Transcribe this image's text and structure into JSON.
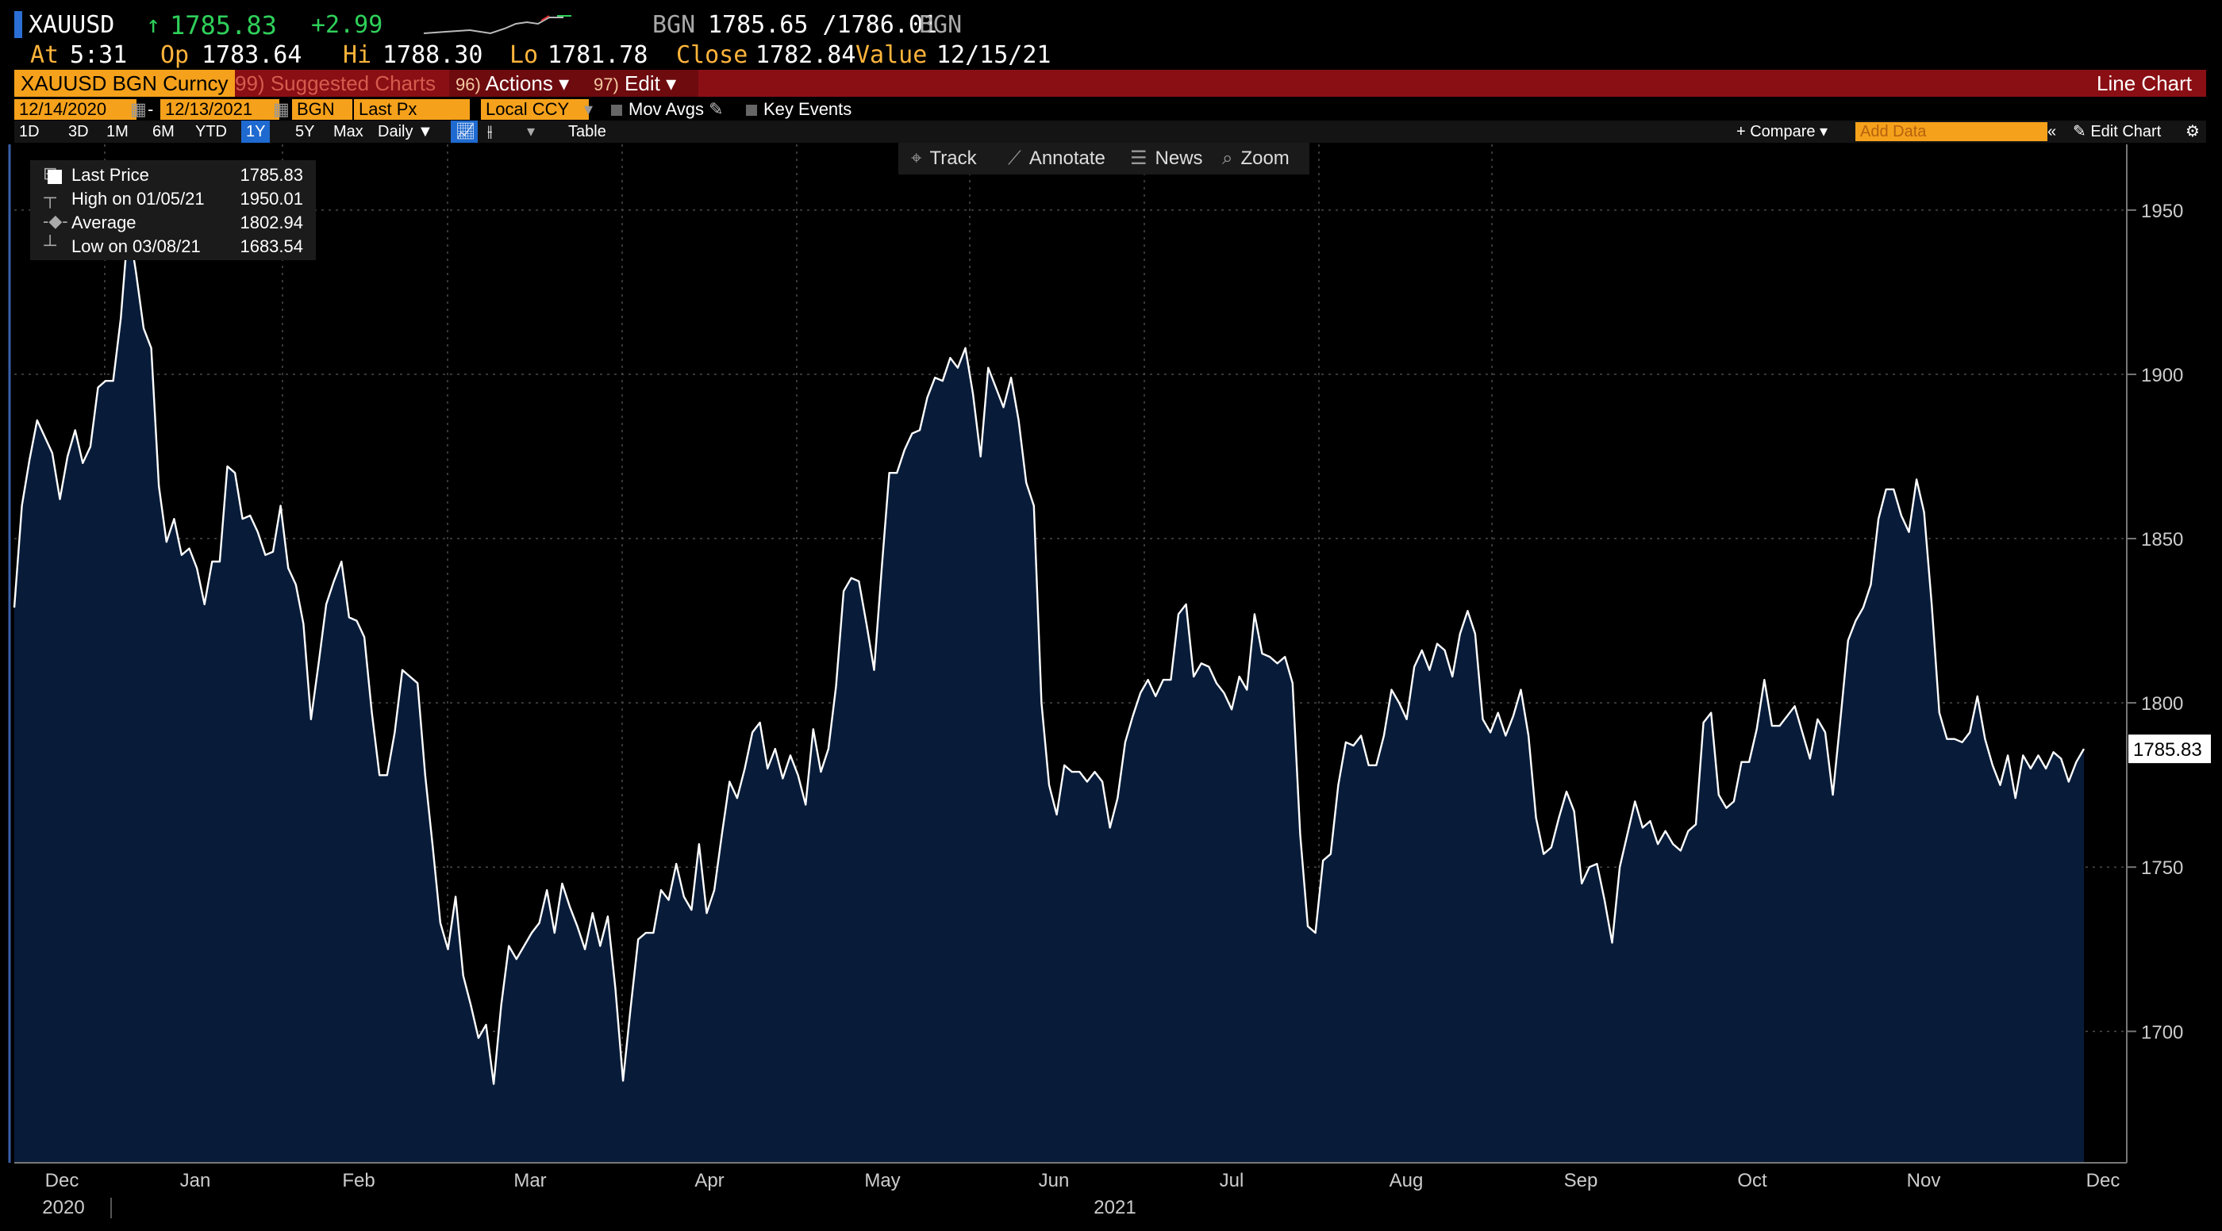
{
  "quote": {
    "ticker": "XAUUSD",
    "arrow": "↑",
    "last": "1785.83",
    "change": "+2.99",
    "source": "BGN",
    "bid_ask": "1785.65 /1786.01",
    "source2": "BGN",
    "at_label": "At",
    "at_time": "5:31",
    "open_label": "Op",
    "open": "1783.64",
    "hi_label": "Hi",
    "hi": "1788.30",
    "lo_label": "Lo",
    "lo": "1781.78",
    "close_label": "Close",
    "close": "1782.84",
    "value_label": "Value",
    "value_date": "12/15/21"
  },
  "toolbar": {
    "security": "XAUUSD BGN Curncy",
    "suggested": "Suggested Charts",
    "suggested_num": "99)",
    "actions_num": "96)",
    "actions": "Actions",
    "edit_num": "97)",
    "edit": "Edit",
    "chart_type": "Line Chart",
    "caret": "▾"
  },
  "params": {
    "start": "12/14/2020",
    "dash": "-",
    "end": "12/13/2021",
    "source": "BGN",
    "field": "Last Px",
    "currency": "Local CCY",
    "mov_avgs": "Mov Avgs",
    "key_events": "Key Events"
  },
  "ranges": {
    "items": [
      "1D",
      "3D",
      "1M",
      "6M",
      "YTD",
      "1Y",
      "5Y",
      "Max"
    ],
    "selected": "1Y",
    "period": "Daily ▼",
    "table": "Table",
    "compare": "+ Compare ▾",
    "add_data_placeholder": "Add Data",
    "edit_chart": "Edit Chart"
  },
  "tools": {
    "track": "Track",
    "annotate": "Annotate",
    "news": "News",
    "zoom": "Zoom"
  },
  "legend": {
    "last_label": "Last Price",
    "last_value": "1785.83",
    "high_label": "High on 01/05/21",
    "high_value": "1950.01",
    "avg_label": "Average",
    "avg_value": "1802.94",
    "low_label": "Low on 03/08/21",
    "low_value": "1683.54"
  },
  "chart_data": {
    "type": "area",
    "ylim": [
      1660,
      1970
    ],
    "yticks": [
      1700,
      1750,
      1800,
      1850,
      1900,
      1950
    ],
    "xticks": [
      "Dec",
      "Jan",
      "Feb",
      "Mar",
      "Apr",
      "May",
      "Jun",
      "Jul",
      "Aug",
      "Sep",
      "Oct",
      "Nov",
      "Dec"
    ],
    "year_labels": [
      "2020",
      "2021"
    ],
    "last_price_label": "1785.83",
    "grid": true,
    "line_color": "#ffffff",
    "fill_color": "#081c3a",
    "series": [
      {
        "values": [
          1829,
          1860,
          1874,
          1886,
          1881,
          1876,
          1862,
          1875,
          1883,
          1873,
          1878,
          1896,
          1898,
          1898,
          1917,
          1946,
          1931,
          1914,
          1908,
          1866,
          1849,
          1856,
          1845,
          1847,
          1841,
          1830,
          1843,
          1843,
          1872,
          1870,
          1856,
          1857,
          1852,
          1845,
          1846,
          1860,
          1841,
          1836,
          1824,
          1795,
          1812,
          1830,
          1837,
          1843,
          1826,
          1825,
          1820,
          1797,
          1778,
          1778,
          1791,
          1810,
          1808,
          1806,
          1778,
          1756,
          1733,
          1725,
          1741,
          1717,
          1708,
          1698,
          1702,
          1684,
          1708,
          1726,
          1722,
          1726,
          1730,
          1733,
          1743,
          1730,
          1745,
          1738,
          1732,
          1725,
          1736,
          1726,
          1735,
          1713,
          1685,
          1707,
          1728,
          1730,
          1730,
          1743,
          1740,
          1751,
          1741,
          1737,
          1757,
          1736,
          1743,
          1760,
          1776,
          1771,
          1780,
          1791,
          1794,
          1780,
          1786,
          1777,
          1784,
          1778,
          1769,
          1792,
          1779,
          1786,
          1805,
          1834,
          1838,
          1837,
          1824,
          1810,
          1841,
          1870,
          1870,
          1877,
          1882,
          1883,
          1893,
          1899,
          1898,
          1905,
          1902,
          1908,
          1894,
          1875,
          1902,
          1896,
          1890,
          1899,
          1886,
          1867,
          1860,
          1800,
          1775,
          1766,
          1781,
          1779,
          1779,
          1776,
          1779,
          1776,
          1762,
          1771,
          1788,
          1796,
          1803,
          1807,
          1802,
          1807,
          1807,
          1827,
          1830,
          1808,
          1812,
          1811,
          1806,
          1803,
          1798,
          1808,
          1804,
          1827,
          1815,
          1814,
          1812,
          1814,
          1806,
          1760,
          1732,
          1730,
          1752,
          1754,
          1775,
          1788,
          1787,
          1790,
          1781,
          1781,
          1790,
          1804,
          1800,
          1795,
          1811,
          1816,
          1810,
          1818,
          1816,
          1808,
          1821,
          1828,
          1821,
          1795,
          1791,
          1797,
          1790,
          1796,
          1804,
          1790,
          1765,
          1754,
          1756,
          1765,
          1773,
          1767,
          1745,
          1750,
          1751,
          1740,
          1727,
          1750,
          1760,
          1770,
          1762,
          1764,
          1757,
          1761,
          1757,
          1755,
          1761,
          1763,
          1794,
          1797,
          1772,
          1768,
          1770,
          1782,
          1782,
          1792,
          1807,
          1793,
          1793,
          1796,
          1799,
          1791,
          1783,
          1795,
          1791,
          1772,
          1795,
          1819,
          1825,
          1829,
          1836,
          1856,
          1865,
          1865,
          1857,
          1852,
          1868,
          1858,
          1830,
          1797,
          1789,
          1789,
          1788,
          1791,
          1802,
          1789,
          1781,
          1775,
          1784,
          1771,
          1784,
          1780,
          1784,
          1780,
          1785,
          1783,
          1776,
          1782,
          1786
        ]
      }
    ]
  }
}
